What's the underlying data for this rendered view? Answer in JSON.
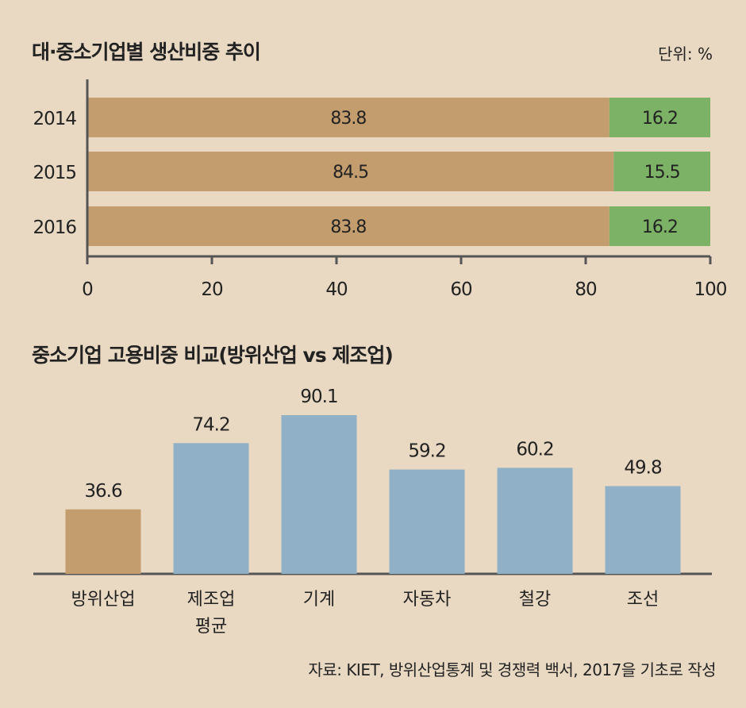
{
  "charts": {
    "top": {
      "title": "대·중소기업별 생산비중 추이",
      "unit": "단위: %"
    },
    "bottom": {
      "title": "중소기업 고용비중 비교(방위산업 vs 제조업)"
    }
  },
  "source": "자료: KIET, 방위산업통계 및 경쟁력 백서, 2017을 기초로 작성",
  "colors": {
    "background": "#e9d9c2",
    "large": "#c49d6e",
    "sme": "#7cb266",
    "highlight": "#c49d6e",
    "bars": "#8fb0c6",
    "axis": "#555555"
  },
  "chart_data": [
    {
      "type": "bar",
      "orientation": "horizontal",
      "stacked": true,
      "title": "대·중소기업별 생산비중 추이",
      "unit": "단위: %",
      "categories": [
        "2014",
        "2015",
        "2016"
      ],
      "series": [
        {
          "values": [
            83.8,
            84.5,
            83.8
          ],
          "labels": [
            "83.8",
            "84.5",
            "83.8"
          ]
        },
        {
          "values": [
            16.2,
            15.5,
            16.2
          ],
          "labels": [
            "16.2",
            "15.5",
            "16.2"
          ]
        }
      ],
      "xlim": [
        0,
        100
      ],
      "xticks": [
        "0",
        "20",
        "40",
        "60",
        "80",
        "100"
      ]
    },
    {
      "type": "bar",
      "title": "중소기업 고용비중 비교(방위산업 vs 제조업)",
      "categories": [
        [
          "방위산업"
        ],
        [
          "제조업",
          "평균"
        ],
        [
          "기계"
        ],
        [
          "자동차"
        ],
        [
          "철강"
        ],
        [
          "조선"
        ]
      ],
      "values": [
        36.6,
        74.2,
        90.1,
        59.2,
        60.2,
        49.8
      ],
      "labels": [
        "36.6",
        "74.2",
        "90.1",
        "59.2",
        "60.2",
        "49.8"
      ],
      "highlight_index": 0,
      "ylim": [
        0,
        100
      ]
    }
  ]
}
